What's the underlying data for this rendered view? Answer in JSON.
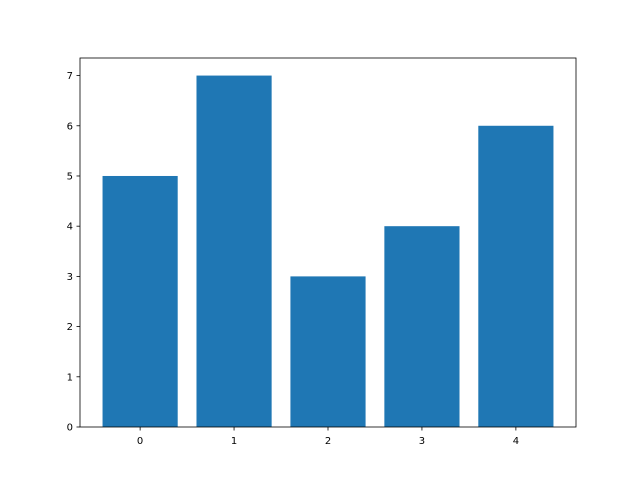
{
  "chart_data": {
    "type": "bar",
    "categories": [
      "0",
      "1",
      "2",
      "3",
      "4"
    ],
    "x": [
      0,
      1,
      2,
      3,
      4
    ],
    "values": [
      5,
      7,
      3,
      4,
      6
    ],
    "bar_width": 0.8,
    "bar_color": "#1f77b4",
    "title": "",
    "xlabel": "",
    "ylabel": "",
    "xlim": [
      -0.64,
      4.64
    ],
    "ylim": [
      0,
      7.35
    ],
    "xticks": [
      0,
      1,
      2,
      3,
      4
    ],
    "xtick_labels": [
      "0",
      "1",
      "2",
      "3",
      "4"
    ],
    "yticks": [
      0,
      1,
      2,
      3,
      4,
      5,
      6,
      7
    ],
    "ytick_labels": [
      "0",
      "1",
      "2",
      "3",
      "4",
      "5",
      "6",
      "7"
    ],
    "grid": false
  }
}
